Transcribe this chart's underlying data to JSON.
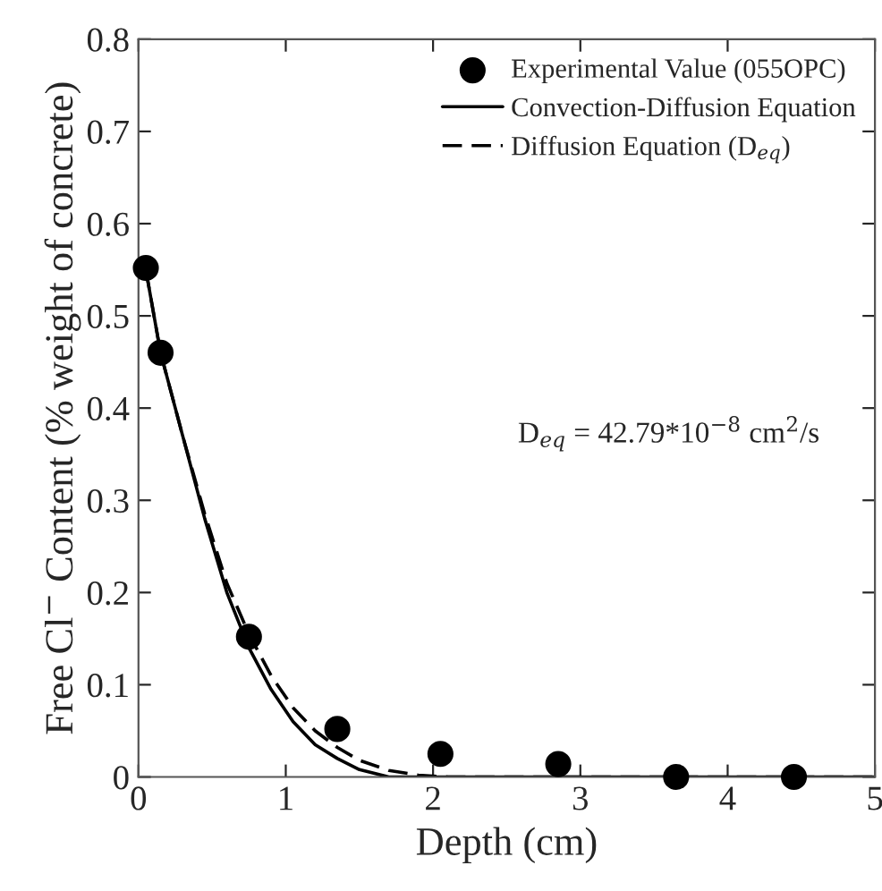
{
  "chart_data": {
    "type": "line",
    "xlabel": "Depth (cm)",
    "ylabel": "Free Cl$^{−}$ Content (% weight of concrete)",
    "xlim": [
      0,
      5
    ],
    "ylim": [
      0,
      0.8
    ],
    "xticks": [
      0,
      1,
      2,
      3,
      4,
      5
    ],
    "yticks": [
      0,
      0.1,
      0.2,
      0.3,
      0.4,
      0.5,
      0.6,
      0.7,
      0.8
    ],
    "grid": false,
    "legend": "top right",
    "annotations": [
      "D$_{eq}$ = 42.79*10$^{−8}$ cm$^{2}$/s"
    ],
    "series": [
      {
        "name": "Experimental Value (055OPC)",
        "type": "scatter",
        "marker": "circle",
        "color": "#000000",
        "x": [
          0.05,
          0.15,
          0.75,
          1.35,
          2.05,
          2.85,
          3.65,
          4.45
        ],
        "values": [
          0.552,
          0.46,
          0.152,
          0.052,
          0.025,
          0.014,
          0.0,
          0.0
        ]
      },
      {
        "name": "Convection-Diffusion Equation",
        "line_style": "solid",
        "color": "#000000",
        "x": [
          0.05,
          0.15,
          0.3,
          0.45,
          0.6,
          0.75,
          0.9,
          1.05,
          1.2,
          1.35,
          1.5,
          1.7,
          2.0,
          5.0
        ],
        "values": [
          0.55,
          0.46,
          0.37,
          0.28,
          0.2,
          0.14,
          0.095,
          0.06,
          0.035,
          0.02,
          0.008,
          0.0,
          0.0,
          0.0
        ]
      },
      {
        "name": "Diffusion Equation (D$_{eq}$)",
        "line_style": "dashed",
        "color": "#000000",
        "x": [
          0.05,
          0.15,
          0.3,
          0.45,
          0.6,
          0.75,
          0.9,
          1.05,
          1.2,
          1.35,
          1.5,
          1.7,
          1.9,
          2.1,
          5.0
        ],
        "values": [
          0.55,
          0.46,
          0.37,
          0.285,
          0.21,
          0.155,
          0.11,
          0.075,
          0.05,
          0.032,
          0.018,
          0.007,
          0.002,
          0.0,
          0.0
        ]
      }
    ]
  }
}
